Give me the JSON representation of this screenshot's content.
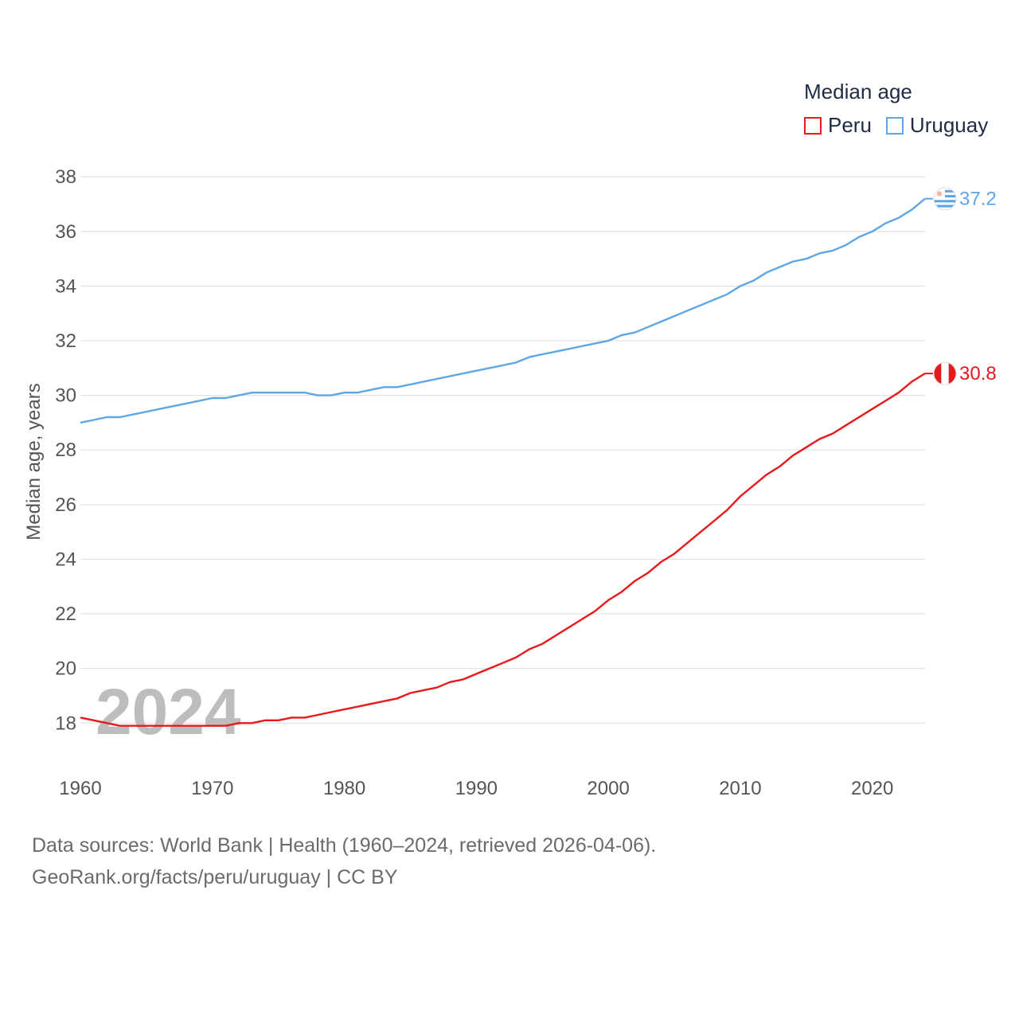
{
  "legend": {
    "title": "Median age",
    "items": [
      {
        "label": "Peru",
        "color": "#e8191c"
      },
      {
        "label": "Uruguay",
        "color": "#5ea6e5"
      }
    ]
  },
  "footer": {
    "line1": "Data sources: World Bank | Health (1960–2024, retrieved 2026-04-06).",
    "line2": "GeoRank.org/facts/peru/uruguay | CC BY"
  },
  "chart_data": {
    "type": "line",
    "title": "Median age",
    "ylabel": "Median age, years",
    "xlabel": "",
    "year_watermark": "2024",
    "xlim": [
      1960,
      2024
    ],
    "ylim": [
      16.2,
      38.5
    ],
    "xticks": [
      1960,
      1970,
      1980,
      1990,
      2000,
      2010,
      2020
    ],
    "yticks": [
      18,
      20,
      22,
      24,
      26,
      28,
      30,
      32,
      34,
      36,
      38
    ],
    "x": [
      1960,
      1961,
      1962,
      1963,
      1964,
      1965,
      1966,
      1967,
      1968,
      1969,
      1970,
      1971,
      1972,
      1973,
      1974,
      1975,
      1976,
      1977,
      1978,
      1979,
      1980,
      1981,
      1982,
      1983,
      1984,
      1985,
      1986,
      1987,
      1988,
      1989,
      1990,
      1991,
      1992,
      1993,
      1994,
      1995,
      1996,
      1997,
      1998,
      1999,
      2000,
      2001,
      2002,
      2003,
      2004,
      2005,
      2006,
      2007,
      2008,
      2009,
      2010,
      2011,
      2012,
      2013,
      2014,
      2015,
      2016,
      2017,
      2018,
      2019,
      2020,
      2021,
      2022,
      2023,
      2024
    ],
    "series": [
      {
        "name": "Uruguay",
        "color": "#5ea6e5",
        "end_label": "37.2",
        "values": [
          29.0,
          29.1,
          29.2,
          29.2,
          29.3,
          29.4,
          29.5,
          29.6,
          29.7,
          29.8,
          29.9,
          29.9,
          30.0,
          30.1,
          30.1,
          30.1,
          30.1,
          30.1,
          30.0,
          30.0,
          30.1,
          30.1,
          30.2,
          30.3,
          30.3,
          30.4,
          30.5,
          30.6,
          30.7,
          30.8,
          30.9,
          31.0,
          31.1,
          31.2,
          31.4,
          31.5,
          31.6,
          31.7,
          31.8,
          31.9,
          32.0,
          32.2,
          32.3,
          32.5,
          32.7,
          32.9,
          33.1,
          33.3,
          33.5,
          33.7,
          34.0,
          34.2,
          34.5,
          34.7,
          34.9,
          35.0,
          35.2,
          35.3,
          35.5,
          35.8,
          36.0,
          36.3,
          36.5,
          36.8,
          37.2
        ]
      },
      {
        "name": "Peru",
        "color": "#e8191c",
        "end_label": "30.8",
        "values": [
          18.2,
          18.1,
          18.0,
          17.9,
          17.9,
          17.9,
          17.9,
          17.9,
          17.9,
          17.9,
          17.9,
          17.9,
          18.0,
          18.0,
          18.1,
          18.1,
          18.2,
          18.2,
          18.3,
          18.4,
          18.5,
          18.6,
          18.7,
          18.8,
          18.9,
          19.1,
          19.2,
          19.3,
          19.5,
          19.6,
          19.8,
          20.0,
          20.2,
          20.4,
          20.7,
          20.9,
          21.2,
          21.5,
          21.8,
          22.1,
          22.5,
          22.8,
          23.2,
          23.5,
          23.9,
          24.2,
          24.6,
          25.0,
          25.4,
          25.8,
          26.3,
          26.7,
          27.1,
          27.4,
          27.8,
          28.1,
          28.4,
          28.6,
          28.9,
          29.2,
          29.5,
          29.8,
          30.1,
          30.5,
          30.8
        ]
      }
    ]
  }
}
